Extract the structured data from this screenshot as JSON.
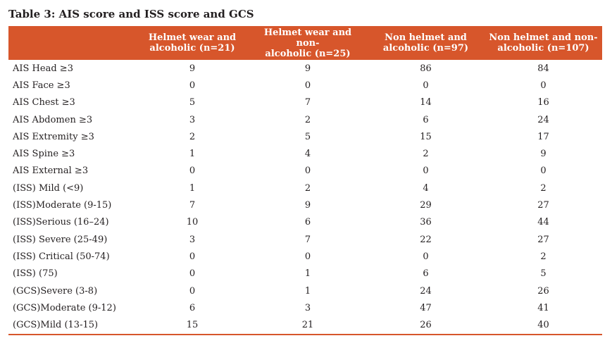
{
  "caption": "Table 3: AIS score and ISS score and GCS",
  "headers": [
    "",
    "Helmet wear and alcoholic (n=21)",
    "Helmet wear and non-alcoholic (n=25)",
    "Non helmet and alcoholic (n=97)",
    "Non helmet and non-alcoholic (n=107)"
  ],
  "header_lines": [
    [
      "",
      ""
    ],
    [
      "Helmet wear and",
      "alcoholic (n=21)"
    ],
    [
      "Helmet wear and non-",
      "alcoholic (n=25)"
    ],
    [
      "Non helmet and",
      "alcoholic (n=97)"
    ],
    [
      "Non helmet and non-",
      "alcoholic (n=107)"
    ]
  ],
  "rows": [
    [
      "AIS Head ≥3",
      "9",
      "9",
      "86",
      "84"
    ],
    [
      "AIS Face ≥3",
      "0",
      "0",
      "0",
      "0"
    ],
    [
      "AIS Chest ≥3",
      "5",
      "7",
      "14",
      "16"
    ],
    [
      "AIS Abdomen ≥3",
      "3",
      "2",
      "6",
      "24"
    ],
    [
      "AIS Extremity ≥3",
      "2",
      "5",
      "15",
      "17"
    ],
    [
      "AIS Spine ≥3",
      "1",
      "4",
      "2",
      "9"
    ],
    [
      "AIS External ≥3",
      "0",
      "0",
      "0",
      "0"
    ],
    [
      "(ISS) Mild (<9)",
      "1",
      "2",
      "4",
      "2"
    ],
    [
      "(ISS)Moderate (9-15)",
      "7",
      "9",
      "29",
      "27"
    ],
    [
      "(ISS)Serious (16–24)",
      "10",
      "6",
      "36",
      "44"
    ],
    [
      "(ISS) Severe (25-49)",
      "3",
      "7",
      "22",
      "27"
    ],
    [
      "(ISS) Critical (50-74)",
      "0",
      "0",
      "0",
      "2"
    ],
    [
      "(ISS) (75)",
      "0",
      "1",
      "6",
      "5"
    ],
    [
      "(GCS)Severe (3-8)",
      "0",
      "1",
      "24",
      "26"
    ],
    [
      "(GCS)Moderate (9-12)",
      "6",
      "3",
      "47",
      "41"
    ],
    [
      "(GCS)Mild (13-15)",
      "15",
      "21",
      "26",
      "40"
    ]
  ],
  "colors": {
    "header_bg": "#d7562b",
    "header_text": "#ffffff",
    "body_text": "#231f20"
  }
}
